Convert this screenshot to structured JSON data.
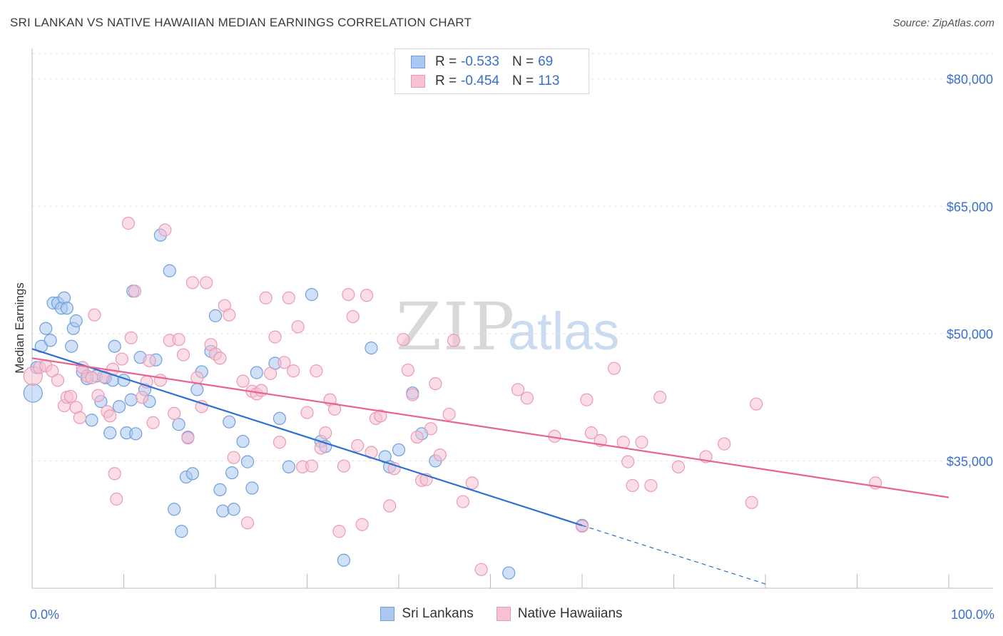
{
  "chart_data": {
    "type": "scatter",
    "title": "SRI LANKAN VS NATIVE HAWAIIAN MEDIAN EARNINGS CORRELATION CHART",
    "source": "Source: ZipAtlas.com",
    "xlabel": "",
    "ylabel": "Median Earnings",
    "xlim": [
      0,
      100
    ],
    "ylim": [
      20000,
      83000
    ],
    "x_tick_labels": {
      "min": "0.0%",
      "max": "100.0%"
    },
    "y_ticks": [
      {
        "value": 80000,
        "label": "$80,000"
      },
      {
        "value": 65000,
        "label": "$65,000"
      },
      {
        "value": 50000,
        "label": "$50,000"
      },
      {
        "value": 35000,
        "label": "$35,000"
      }
    ],
    "watermark": {
      "zip": "ZIP",
      "atlas": "atlas"
    },
    "colors": {
      "blue_fill": "#aac8f0",
      "blue_stroke": "#6f9fe0",
      "blue_line": "#2c6fd1",
      "pink_fill": "#f7c1d2",
      "pink_stroke": "#ec9ab4",
      "pink_line": "#e8638f",
      "tick_label": "#3a6fc9",
      "grid": "#e3e3e3"
    },
    "legend": [
      {
        "r_label": "R =",
        "r_value": "-0.533",
        "n_label": "N =",
        "n_value": "69"
      },
      {
        "r_label": "R =",
        "r_value": "-0.454",
        "n_label": "N =",
        "n_value": "113"
      }
    ],
    "series": [
      {
        "name": "Sri Lankans",
        "trend": {
          "x0": 0,
          "y0": 48200,
          "x1": 60,
          "y1": 27400,
          "dashed_to_x": 80,
          "dashed_to_y": 20500
        },
        "points": [
          [
            0.1,
            43000
          ],
          [
            0.5,
            46000
          ],
          [
            1,
            48500
          ],
          [
            1.5,
            50600
          ],
          [
            2,
            49200
          ],
          [
            2.3,
            53600
          ],
          [
            2.8,
            53600
          ],
          [
            3.2,
            53000
          ],
          [
            3.5,
            54200
          ],
          [
            3.8,
            53000
          ],
          [
            4.5,
            50600
          ],
          [
            4.8,
            51500
          ],
          [
            4.3,
            48500
          ],
          [
            5.5,
            45500
          ],
          [
            6,
            44700
          ],
          [
            6.5,
            39800
          ],
          [
            7,
            45000
          ],
          [
            7.5,
            42000
          ],
          [
            8,
            44800
          ],
          [
            8.5,
            38300
          ],
          [
            8.8,
            44500
          ],
          [
            9,
            48500
          ],
          [
            9.5,
            41400
          ],
          [
            10,
            44500
          ],
          [
            10.3,
            38300
          ],
          [
            10.8,
            42200
          ],
          [
            11,
            55000
          ],
          [
            11.3,
            38200
          ],
          [
            11.8,
            47200
          ],
          [
            12.3,
            43400
          ],
          [
            12.8,
            42000
          ],
          [
            13.5,
            46900
          ],
          [
            14,
            61600
          ],
          [
            15,
            57400
          ],
          [
            15.5,
            29300
          ],
          [
            16,
            39300
          ],
          [
            16.3,
            26700
          ],
          [
            16.8,
            33100
          ],
          [
            17,
            37800
          ],
          [
            17.5,
            33500
          ],
          [
            18,
            43400
          ],
          [
            18.5,
            45500
          ],
          [
            19.5,
            47900
          ],
          [
            20,
            52100
          ],
          [
            20.5,
            31600
          ],
          [
            20.8,
            29100
          ],
          [
            21.5,
            39600
          ],
          [
            21.8,
            33600
          ],
          [
            22,
            29300
          ],
          [
            23,
            37300
          ],
          [
            23.5,
            34900
          ],
          [
            24,
            31800
          ],
          [
            24.5,
            45400
          ],
          [
            26.5,
            46500
          ],
          [
            27,
            40000
          ],
          [
            28,
            34300
          ],
          [
            30.5,
            54600
          ],
          [
            31.5,
            37300
          ],
          [
            32,
            36700
          ],
          [
            34,
            23300
          ],
          [
            37,
            48300
          ],
          [
            38.5,
            35500
          ],
          [
            39,
            34300
          ],
          [
            40,
            36300
          ],
          [
            41.5,
            43000
          ],
          [
            42.5,
            38200
          ],
          [
            44,
            35000
          ],
          [
            52,
            21800
          ],
          [
            60,
            27400
          ]
        ]
      },
      {
        "name": "Native Hawaiians",
        "trend": {
          "x0": 0,
          "y0": 47100,
          "x1": 100,
          "y1": 30700
        },
        "points": [
          [
            0.1,
            45000
          ],
          [
            0.8,
            46000
          ],
          [
            1.5,
            46200
          ],
          [
            2.2,
            45600
          ],
          [
            2.8,
            44500
          ],
          [
            3.5,
            41500
          ],
          [
            3.8,
            42500
          ],
          [
            4.2,
            42600
          ],
          [
            4.8,
            41300
          ],
          [
            5.2,
            40100
          ],
          [
            5.5,
            46000
          ],
          [
            6,
            45000
          ],
          [
            6.5,
            44800
          ],
          [
            6.8,
            52200
          ],
          [
            7.2,
            42700
          ],
          [
            7.8,
            44900
          ],
          [
            8.2,
            40800
          ],
          [
            8.5,
            40300
          ],
          [
            8.8,
            45800
          ],
          [
            9,
            33500
          ],
          [
            9.2,
            30500
          ],
          [
            9.8,
            47000
          ],
          [
            10.5,
            63000
          ],
          [
            10.8,
            49500
          ],
          [
            11.2,
            55000
          ],
          [
            12,
            42500
          ],
          [
            12.5,
            44300
          ],
          [
            12.8,
            46800
          ],
          [
            13.2,
            39500
          ],
          [
            14,
            44500
          ],
          [
            14.5,
            62200
          ],
          [
            15,
            49200
          ],
          [
            15.5,
            40600
          ],
          [
            16,
            49300
          ],
          [
            16.5,
            47500
          ],
          [
            17,
            37700
          ],
          [
            17.5,
            56000
          ],
          [
            18,
            44800
          ],
          [
            18.5,
            41400
          ],
          [
            19,
            56000
          ],
          [
            19.5,
            48700
          ],
          [
            20,
            47600
          ],
          [
            20.5,
            47100
          ],
          [
            21,
            53300
          ],
          [
            21.5,
            52200
          ],
          [
            22,
            35400
          ],
          [
            23,
            44400
          ],
          [
            23.5,
            27700
          ],
          [
            24,
            43200
          ],
          [
            24.5,
            42900
          ],
          [
            25,
            43300
          ],
          [
            25.5,
            54200
          ],
          [
            26,
            45300
          ],
          [
            26.5,
            49600
          ],
          [
            27,
            37200
          ],
          [
            27.5,
            46600
          ],
          [
            28,
            54200
          ],
          [
            28.5,
            45600
          ],
          [
            29,
            50800
          ],
          [
            29.5,
            34300
          ],
          [
            30,
            40700
          ],
          [
            30.5,
            34400
          ],
          [
            31,
            45600
          ],
          [
            31.5,
            36500
          ],
          [
            32,
            38300
          ],
          [
            32.5,
            42200
          ],
          [
            33,
            41100
          ],
          [
            33.5,
            26700
          ],
          [
            34,
            34400
          ],
          [
            34.5,
            54600
          ],
          [
            35,
            52000
          ],
          [
            35.5,
            36800
          ],
          [
            36,
            27500
          ],
          [
            36.5,
            54500
          ],
          [
            37,
            36000
          ],
          [
            37.5,
            40000
          ],
          [
            38,
            40300
          ],
          [
            39,
            29700
          ],
          [
            39.5,
            34100
          ],
          [
            40.5,
            49300
          ],
          [
            41,
            45700
          ],
          [
            41.5,
            42800
          ],
          [
            42,
            37800
          ],
          [
            42.5,
            32700
          ],
          [
            43,
            32800
          ],
          [
            43.5,
            38800
          ],
          [
            44,
            44100
          ],
          [
            44.5,
            35700
          ],
          [
            45.5,
            40500
          ],
          [
            46,
            49200
          ],
          [
            47,
            30200
          ],
          [
            48,
            32400
          ],
          [
            49,
            22200
          ],
          [
            53,
            43400
          ],
          [
            54,
            42400
          ],
          [
            57,
            37900
          ],
          [
            60,
            27300
          ],
          [
            60.5,
            42200
          ],
          [
            61,
            38300
          ],
          [
            62,
            37400
          ],
          [
            63.5,
            45900
          ],
          [
            64.5,
            37200
          ],
          [
            65,
            34900
          ],
          [
            65.5,
            32100
          ],
          [
            66.5,
            37200
          ],
          [
            67.5,
            32100
          ],
          [
            68.5,
            42500
          ],
          [
            70.5,
            34300
          ],
          [
            73.5,
            35500
          ],
          [
            75.5,
            37000
          ],
          [
            78.5,
            30100
          ],
          [
            79,
            41700
          ],
          [
            92,
            32400
          ]
        ]
      }
    ]
  },
  "bottom_legend": [
    "Sri Lankans",
    "Native Hawaiians"
  ]
}
